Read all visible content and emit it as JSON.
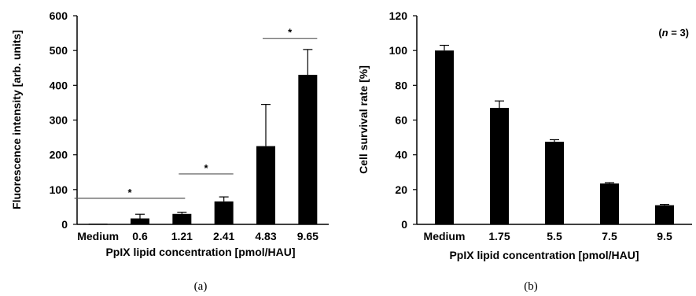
{
  "chart_data": [
    {
      "type": "bar",
      "panel_label": "(a)",
      "categories": [
        "Medium",
        "0.6",
        "1.21",
        "2.41",
        "4.83",
        "9.65"
      ],
      "values": [
        2,
        17,
        30,
        66,
        225,
        430
      ],
      "errors": [
        0,
        12,
        5,
        13,
        120,
        73
      ],
      "xlabel": "PpIX lipid concentration [pmol/HAU]",
      "ylabel": "Fluorescence intensity [arb. units]",
      "ylim": [
        0,
        600
      ],
      "yticks": [
        "0",
        "100",
        "200",
        "300",
        "400",
        "500",
        "600"
      ],
      "significance": [
        {
          "from": 0,
          "to": 2,
          "y": 75,
          "label": "*"
        },
        {
          "from": 2,
          "to": 3,
          "y": 145,
          "label": "*"
        },
        {
          "from": 4,
          "to": 5,
          "y": 535,
          "label": "*"
        }
      ],
      "bar_color": "#000000",
      "grid": false
    },
    {
      "type": "bar",
      "panel_label": "(b)",
      "categories": [
        "Medium",
        "1.75",
        "5.5",
        "7.5",
        "9.5"
      ],
      "values": [
        100,
        67,
        47.5,
        23.5,
        11
      ],
      "errors": [
        3,
        4,
        1.2,
        0.5,
        0.5
      ],
      "xlabel": "PpIX lipid concentration [pmol/HAU]",
      "ylabel": "Cell survival rate [%]",
      "ylim": [
        0,
        120
      ],
      "yticks": [
        "0",
        "20",
        "40",
        "60",
        "80",
        "100",
        "120"
      ],
      "annotation": {
        "prefix": "(",
        "italic": "n",
        "suffix": " = 3)"
      },
      "bar_color": "#000000",
      "grid": false
    }
  ]
}
